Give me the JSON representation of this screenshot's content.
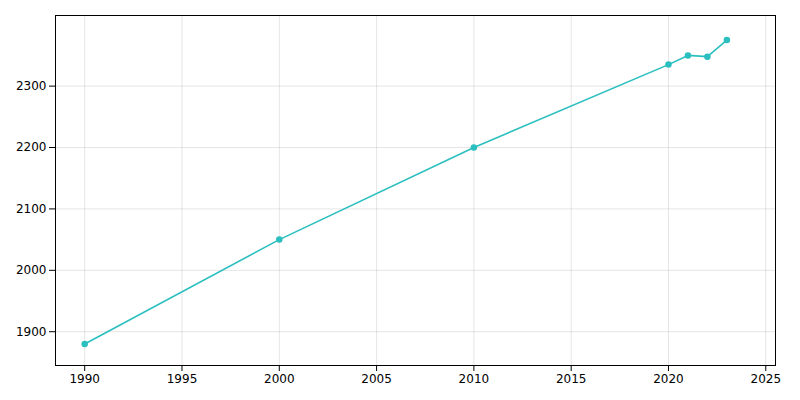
{
  "chart_data": {
    "type": "line",
    "x": [
      1990,
      2000,
      2010,
      2020,
      2021,
      2022,
      2023
    ],
    "values": [
      1880,
      2050,
      2200,
      2335,
      2350,
      2348,
      2375
    ],
    "color": "#2bbfbf",
    "marker": "circle",
    "xlim": [
      1988.5,
      2025.5
    ],
    "ylim": [
      1845,
      2415
    ],
    "xticks": [
      1990,
      1995,
      2000,
      2005,
      2010,
      2015,
      2020,
      2025
    ],
    "yticks": [
      1900,
      2000,
      2100,
      2200,
      2300
    ],
    "grid": true
  }
}
